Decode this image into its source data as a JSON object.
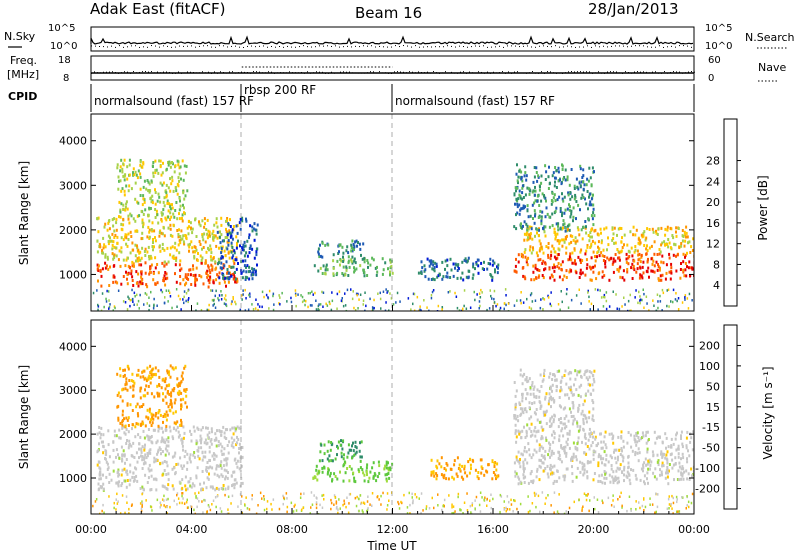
{
  "header": {
    "station": "Adak East (fitACF)",
    "beam": "Beam 16",
    "date": "28/Jan/2013"
  },
  "nsky_panel": {
    "left_label": "N.Sky",
    "right_label": "N.Search",
    "left_ticks": [
      "10^5",
      "10^0"
    ],
    "right_ticks": [
      "10^5",
      "10^0"
    ]
  },
  "freq_panel": {
    "left_label_1": "Freq.",
    "left_label_2": "[MHz]",
    "right_label": "Nave",
    "left_ticks": [
      "18",
      "8"
    ],
    "right_ticks": [
      "60",
      "0"
    ]
  },
  "cpid": {
    "label": "CPID",
    "segments": [
      {
        "label": "normalsound (fast) 157 RF",
        "start_h": 0,
        "end_h": 6
      },
      {
        "label": "rbsp 200 RF",
        "start_h": 6,
        "end_h": 12
      },
      {
        "label": "normalsound (fast) 157 RF",
        "start_h": 12,
        "end_h": 24
      }
    ]
  },
  "x_axis": {
    "label": "Time UT",
    "ticks": [
      "00:00",
      "04:00",
      "08:00",
      "12:00",
      "16:00",
      "20:00",
      "00:00"
    ]
  },
  "chart_data": [
    {
      "type": "heatmap",
      "title": "",
      "xlabel": "Time UT",
      "ylabel": "Slant Range [km]",
      "xlim_hours": [
        0,
        24
      ],
      "ylim": [
        180,
        4600
      ],
      "yticks": [
        "1000",
        "2000",
        "3000",
        "4000"
      ],
      "colorbar": {
        "label": "Power [dB]",
        "ticks": [
          "4",
          "8",
          "12",
          "16",
          "20",
          "24",
          "28"
        ],
        "colors": [
          "#0019d6",
          "#1e5ab4",
          "#2f8c6a",
          "#5cb85a",
          "#a8d24a",
          "#ffc800",
          "#ff9600",
          "#ff5a00",
          "#e60000"
        ]
      },
      "regions": [
        {
          "t": [
            0.2,
            5.8
          ],
          "range_km": [
            750,
            1300
          ],
          "power_db": 30
        },
        {
          "t": [
            0.2,
            5.8
          ],
          "range_km": [
            1300,
            2300
          ],
          "power_db": 21
        },
        {
          "t": [
            1.0,
            3.8
          ],
          "range_km": [
            2300,
            3600
          ],
          "power_db": 18
        },
        {
          "t": [
            5.0,
            6.6
          ],
          "range_km": [
            900,
            2300
          ],
          "power_db": 6
        },
        {
          "t": [
            8.8,
            12.0
          ],
          "range_km": [
            1000,
            1400
          ],
          "power_db": 14
        },
        {
          "t": [
            9.0,
            10.8
          ],
          "range_km": [
            1400,
            1800
          ],
          "power_db": 10
        },
        {
          "t": [
            13.0,
            16.3
          ],
          "range_km": [
            900,
            1400
          ],
          "power_db": 7
        },
        {
          "t": [
            16.8,
            24.0
          ],
          "range_km": [
            900,
            1500
          ],
          "power_db": 31
        },
        {
          "t": [
            17.2,
            24.0
          ],
          "range_km": [
            1500,
            2100
          ],
          "power_db": 22
        },
        {
          "t": [
            16.8,
            20.0
          ],
          "range_km": [
            2000,
            3500
          ],
          "power_db": 10
        }
      ]
    },
    {
      "type": "heatmap",
      "title": "",
      "xlabel": "Time UT",
      "ylabel": "Slant Range [km]",
      "xlim_hours": [
        0,
        24
      ],
      "ylim": [
        180,
        4600
      ],
      "yticks": [
        "1000",
        "2000",
        "3000",
        "4000"
      ],
      "colorbar": {
        "label": "Velocity [m s⁻¹]",
        "ticks": [
          "200",
          "100",
          "50",
          "15",
          "-15",
          "-50",
          "-100",
          "-200"
        ],
        "colors": [
          "#1e32c8",
          "#2f8c6a",
          "#5cc83c",
          "#a0dc3c",
          "#c8c8c8",
          "#ffc800",
          "#ff9600",
          "#ff5a00",
          "#e60000"
        ]
      },
      "regions": [
        {
          "t": [
            0.2,
            6.0
          ],
          "range_km": [
            750,
            2200
          ],
          "velocity_ms": 0
        },
        {
          "t": [
            1.0,
            3.8
          ],
          "range_km": [
            2200,
            3600
          ],
          "velocity_ms": -60
        },
        {
          "t": [
            8.8,
            12.0
          ],
          "range_km": [
            950,
            1400
          ],
          "velocity_ms": 60
        },
        {
          "t": [
            9.0,
            10.8
          ],
          "range_km": [
            1400,
            1900
          ],
          "velocity_ms": 100
        },
        {
          "t": [
            13.5,
            16.2
          ],
          "range_km": [
            1000,
            1500
          ],
          "velocity_ms": -60
        },
        {
          "t": [
            16.8,
            24.0
          ],
          "range_km": [
            900,
            2100
          ],
          "velocity_ms": 0
        },
        {
          "t": [
            16.8,
            20.0
          ],
          "range_km": [
            2100,
            3500
          ],
          "velocity_ms": 0
        }
      ]
    }
  ]
}
